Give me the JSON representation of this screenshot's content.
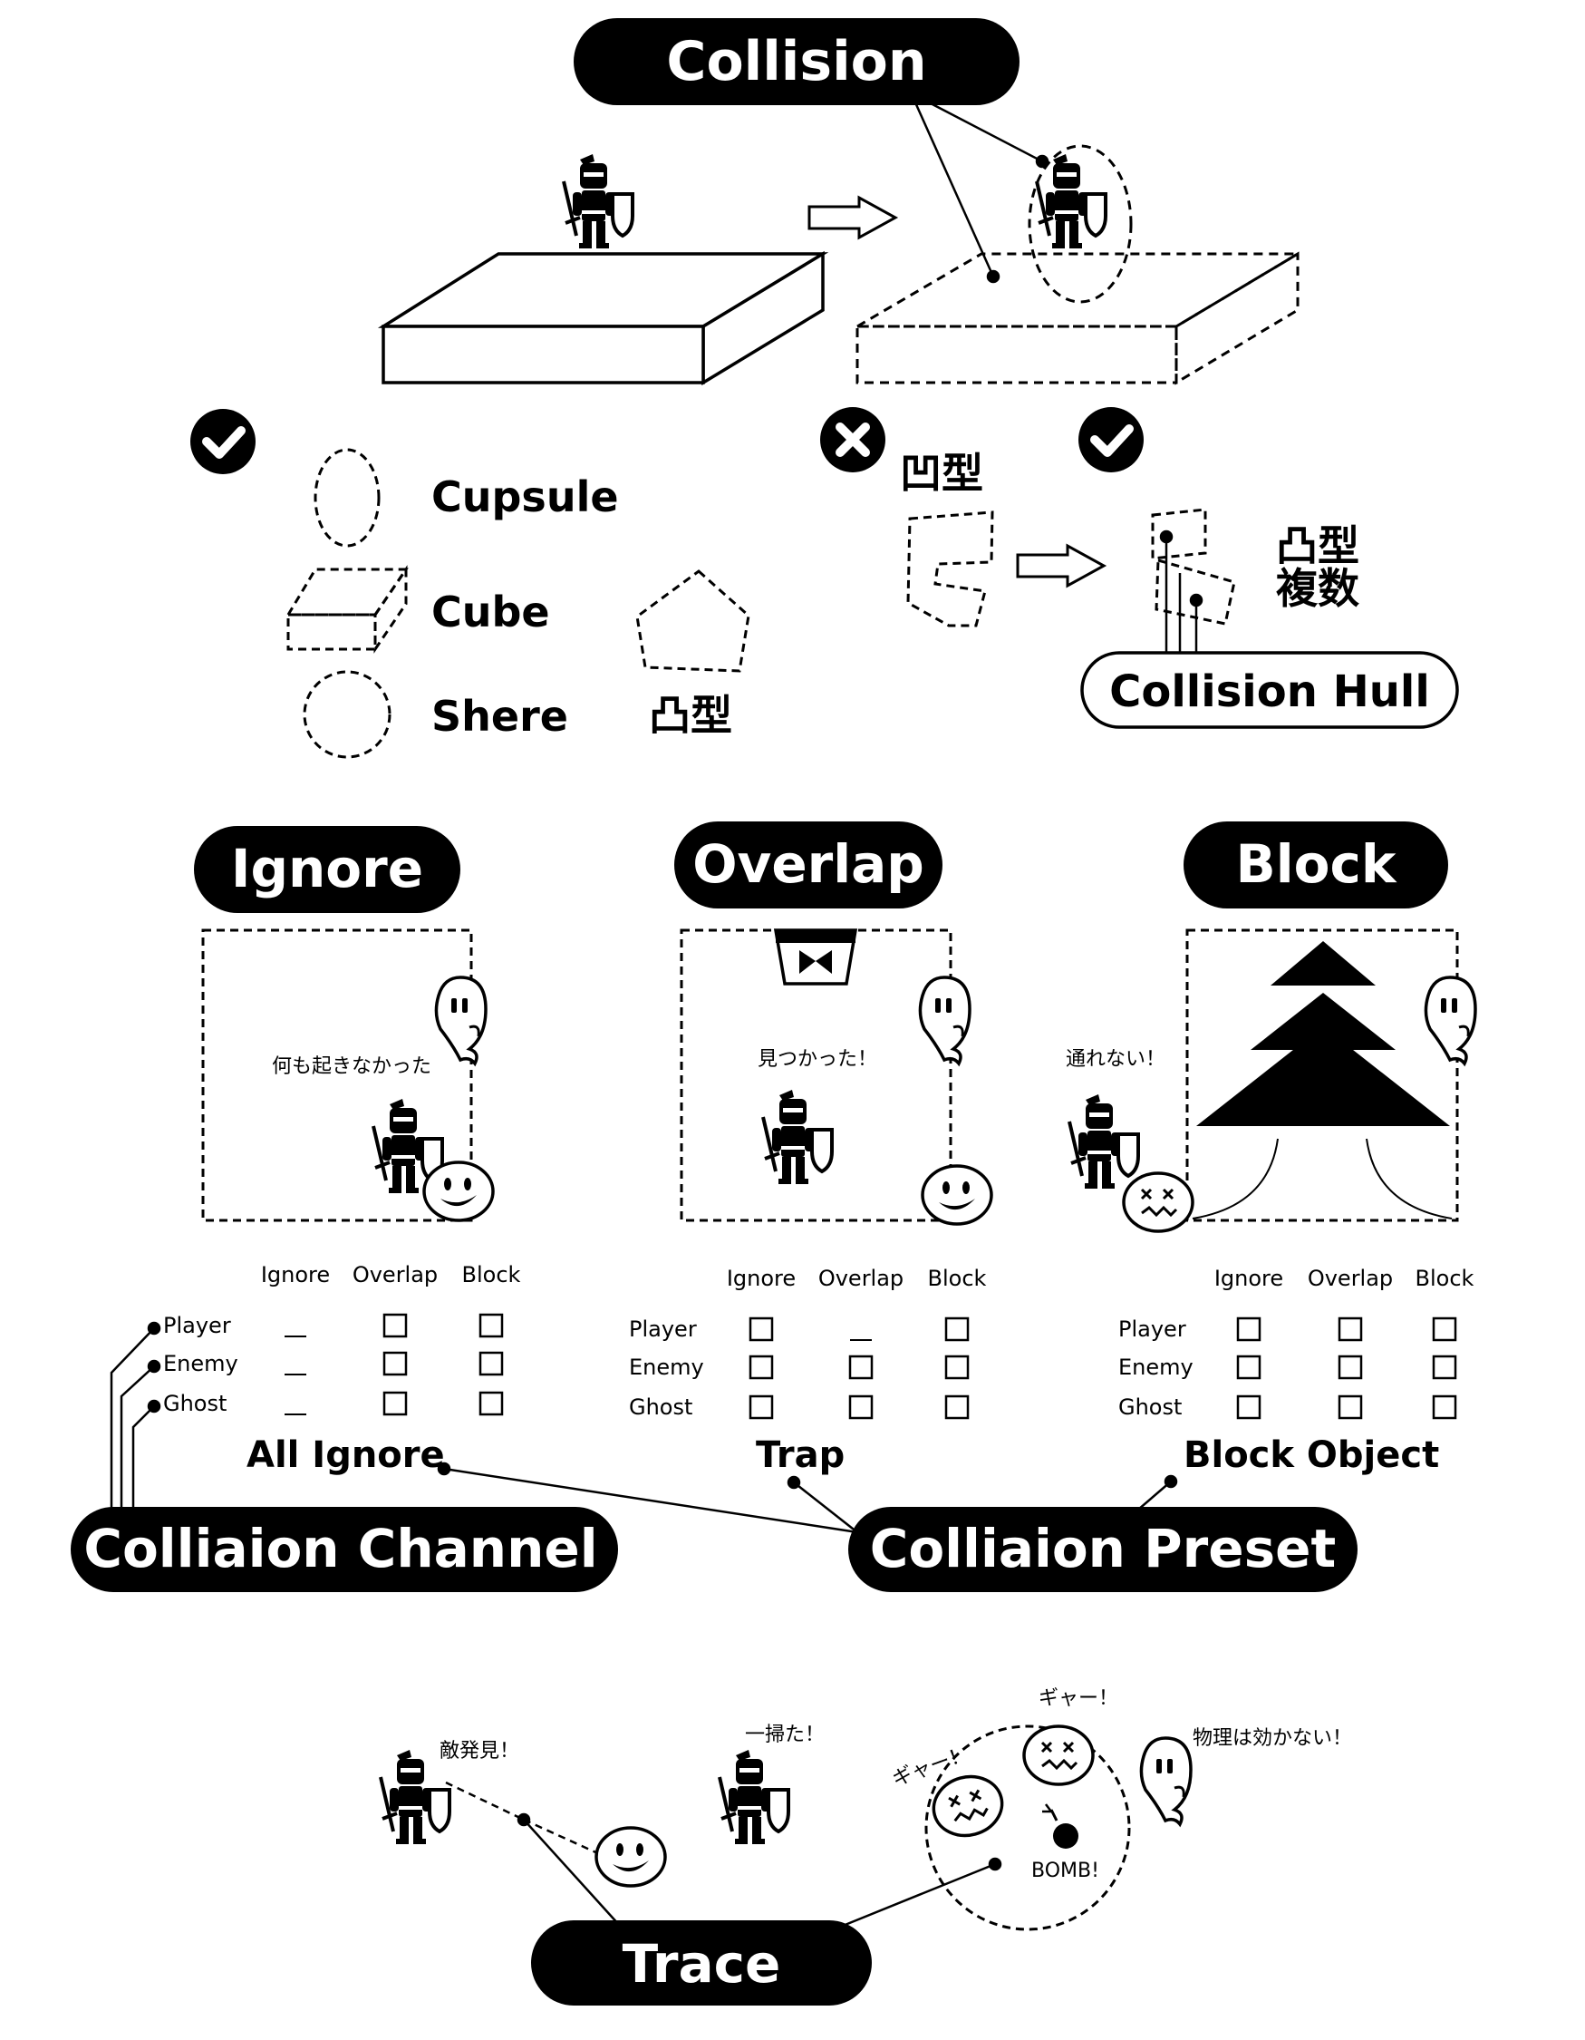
{
  "titles": {
    "collision": "Collision",
    "ignore": "Ignore",
    "overlap": "Overlap",
    "block": "Block",
    "channel": "Colliaion Channel",
    "preset": "Colliaion Preset",
    "trace": "Trace",
    "hull": "Collision Hull"
  },
  "shapes": {
    "capsule": "Cupsule",
    "cube": "Cube",
    "sphere": "Shere",
    "convex": "凸型",
    "concave": "凹型",
    "convex_multi_1": "凸型",
    "convex_multi_2": "複数"
  },
  "captions": {
    "ignore": "何も起きなかった",
    "overlap": "見つかった！",
    "block": "通れない！",
    "found_enemy": "敵発見！",
    "swept": "一掃た！",
    "scream1": "ギャー！",
    "scream2": "ギャー！",
    "no_physics": "物理は効かない！",
    "bomb": "BOMB!"
  },
  "table_headers": [
    "Ignore",
    "Overlap",
    "Block"
  ],
  "channels": [
    "Player",
    "Enemy",
    "Ghost"
  ],
  "presets": {
    "all_ignore": "All Ignore",
    "trap": "Trap",
    "block_object": "Block Object"
  },
  "preset_tables": [
    {
      "rows": [
        [
          "none",
          "box",
          "box"
        ],
        [
          "none",
          "box",
          "box"
        ],
        [
          "none",
          "box",
          "box"
        ]
      ]
    },
    {
      "rows": [
        [
          "box",
          "none",
          "box"
        ],
        [
          "box",
          "box",
          "box"
        ],
        [
          "box",
          "box",
          "box"
        ]
      ]
    },
    {
      "rows": [
        [
          "box",
          "box",
          "box"
        ],
        [
          "box",
          "box",
          "box"
        ],
        [
          "box",
          "box",
          "box"
        ]
      ]
    }
  ]
}
